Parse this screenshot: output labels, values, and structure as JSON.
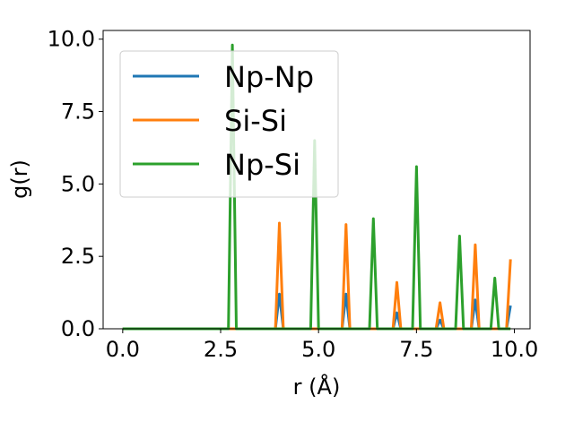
{
  "chart_data": {
    "type": "line",
    "xlabel": "r (Å)",
    "ylabel": "g(r)",
    "xlim": [
      -0.5,
      10.4
    ],
    "ylim": [
      0,
      10.3
    ],
    "xticks": [
      0.0,
      2.5,
      5.0,
      7.5,
      10.0
    ],
    "yticks": [
      0.0,
      2.5,
      5.0,
      7.5,
      10.0
    ],
    "xtick_labels": [
      "0.0",
      "2.5",
      "5.0",
      "7.5",
      "10.0"
    ],
    "ytick_labels": [
      "0.0",
      "2.5",
      "5.0",
      "7.5",
      "10.0"
    ],
    "grid": false,
    "legend_position": "top-left",
    "series": [
      {
        "name": "Np-Np",
        "color": "#1f77b4",
        "points": [
          [
            0.0,
            0
          ],
          [
            3.9,
            0
          ],
          [
            4.0,
            1.2
          ],
          [
            4.1,
            0
          ],
          [
            5.6,
            0
          ],
          [
            5.7,
            1.2
          ],
          [
            5.8,
            0
          ],
          [
            6.9,
            0
          ],
          [
            7.0,
            0.55
          ],
          [
            7.1,
            0
          ],
          [
            8.0,
            0
          ],
          [
            8.1,
            0.3
          ],
          [
            8.2,
            0
          ],
          [
            8.9,
            0
          ],
          [
            9.0,
            1.0
          ],
          [
            9.1,
            0
          ],
          [
            9.8,
            0
          ],
          [
            9.9,
            0.8
          ]
        ]
      },
      {
        "name": "Si-Si",
        "color": "#ff7f0e",
        "points": [
          [
            0.0,
            0
          ],
          [
            3.9,
            0
          ],
          [
            4.0,
            3.65
          ],
          [
            4.1,
            0
          ],
          [
            5.6,
            0
          ],
          [
            5.7,
            3.6
          ],
          [
            5.8,
            0
          ],
          [
            6.9,
            0
          ],
          [
            7.0,
            1.6
          ],
          [
            7.1,
            0
          ],
          [
            8.0,
            0
          ],
          [
            8.1,
            0.9
          ],
          [
            8.2,
            0
          ],
          [
            8.9,
            0
          ],
          [
            9.0,
            2.9
          ],
          [
            9.1,
            0
          ],
          [
            9.8,
            0
          ],
          [
            9.9,
            2.4
          ]
        ]
      },
      {
        "name": "Np-Si",
        "color": "#2ca02c",
        "points": [
          [
            0.0,
            0
          ],
          [
            2.7,
            0
          ],
          [
            2.8,
            9.8
          ],
          [
            2.9,
            0
          ],
          [
            4.8,
            0
          ],
          [
            4.9,
            6.5
          ],
          [
            5.0,
            0
          ],
          [
            6.3,
            0
          ],
          [
            6.4,
            3.8
          ],
          [
            6.5,
            0
          ],
          [
            7.4,
            0
          ],
          [
            7.5,
            5.6
          ],
          [
            7.6,
            0
          ],
          [
            8.5,
            0
          ],
          [
            8.6,
            3.2
          ],
          [
            8.7,
            0
          ],
          [
            9.4,
            0
          ],
          [
            9.5,
            1.75
          ],
          [
            9.6,
            0
          ],
          [
            9.9,
            0
          ]
        ]
      }
    ]
  }
}
